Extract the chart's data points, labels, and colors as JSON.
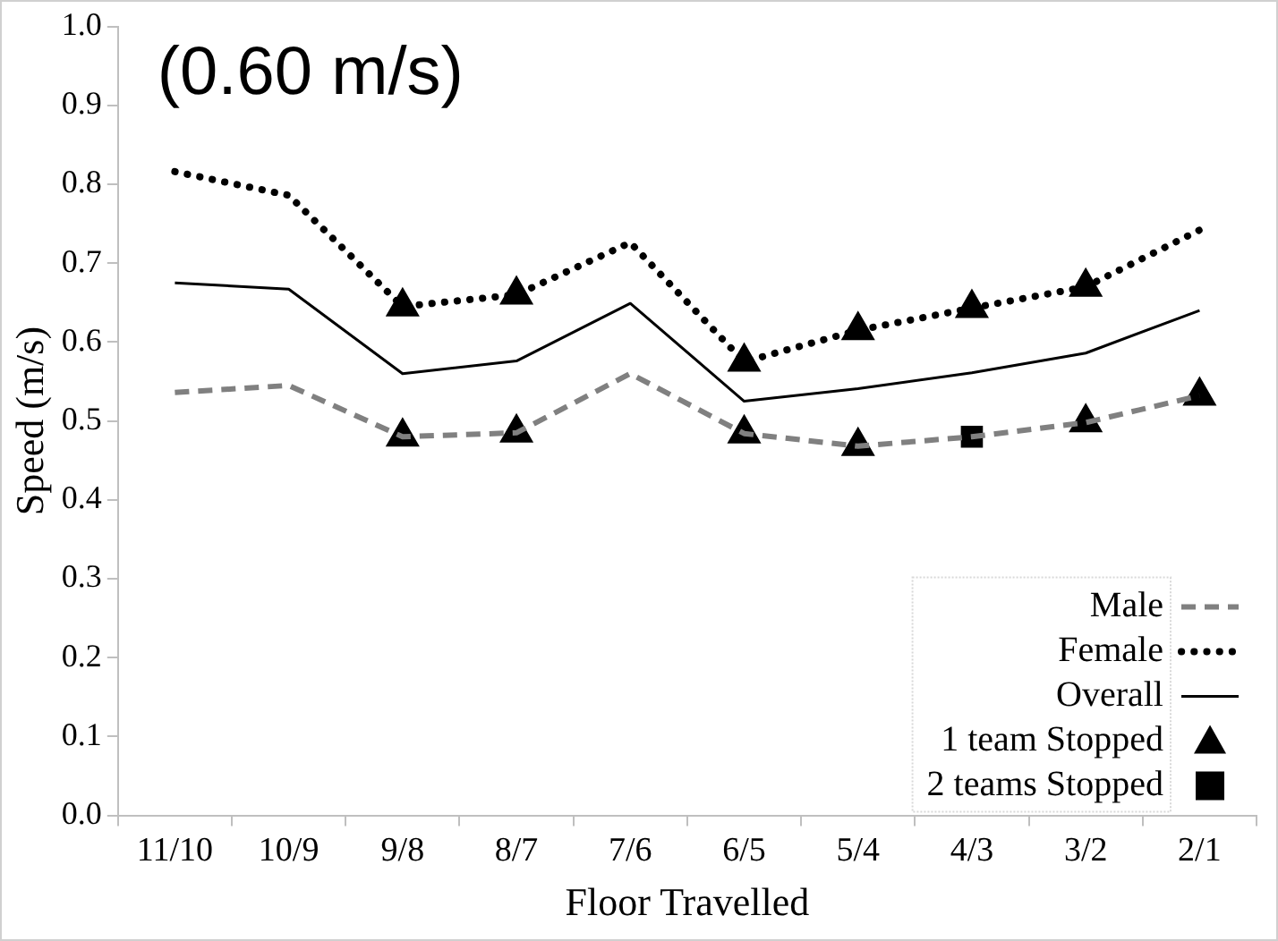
{
  "chart_data": {
    "type": "line",
    "xlabel": "Floor Travelled",
    "ylabel": "Speed (m/s)",
    "categories": [
      "11/10",
      "10/9",
      "9/8",
      "8/7",
      "7/6",
      "6/5",
      "5/4",
      "4/3",
      "3/2",
      "2/1"
    ],
    "ylim": [
      0,
      1
    ],
    "yticks": [
      {
        "value": 0,
        "label": "0.0"
      },
      {
        "value": 0.1,
        "label": "0.1"
      },
      {
        "value": 0.2,
        "label": "0.2"
      },
      {
        "value": 0.3,
        "label": "0.3"
      },
      {
        "value": 0.4,
        "label": "0.4"
      },
      {
        "value": 0.5,
        "label": "0.5"
      },
      {
        "value": 0.6,
        "label": "0.6"
      },
      {
        "value": 0.7,
        "label": "0.7"
      },
      {
        "value": 0.8,
        "label": "0.8"
      },
      {
        "value": 0.9,
        "label": "0.9"
      },
      {
        "value": 1,
        "label": "1.0"
      }
    ],
    "grid": false,
    "legend": "bottom right",
    "annotations": [
      "(0.60 m/s)"
    ],
    "series": [
      {
        "name": "Male",
        "color": "#808080",
        "line_style": "dashed",
        "marker": "none",
        "values": [
          0.536,
          0.545,
          0.48,
          0.485,
          0.56,
          0.484,
          0.468,
          0.48,
          0.498,
          0.532
        ]
      },
      {
        "name": "Female",
        "color": "#000000",
        "line_style": "dotted",
        "marker": "none",
        "values": [
          0.816,
          0.786,
          0.645,
          0.66,
          0.726,
          0.575,
          0.615,
          0.643,
          0.67,
          0.742
        ]
      },
      {
        "name": "Overall",
        "color": "#000000",
        "line_style": "solid",
        "marker": "none",
        "values": [
          0.675,
          0.667,
          0.56,
          0.576,
          0.649,
          0.525,
          0.541,
          0.561,
          0.586,
          0.64
        ]
      },
      {
        "name": "1 team Stopped",
        "type": "scatter",
        "color": "#000000",
        "marker": "triangle",
        "x": [
          "9/8",
          "8/7",
          "6/5",
          "5/4",
          "4/3",
          "3/2",
          "9/8",
          "8/7",
          "6/5",
          "5/4",
          "3/2",
          "2/1"
        ],
        "values": [
          0.645,
          0.66,
          0.575,
          0.615,
          0.643,
          0.67,
          0.48,
          0.485,
          0.484,
          0.468,
          0.498,
          0.532
        ]
      },
      {
        "name": "2 teams Stopped",
        "type": "scatter",
        "color": "#000000",
        "marker": "square",
        "x": [
          "4/3"
        ],
        "values": [
          0.48
        ]
      }
    ]
  }
}
